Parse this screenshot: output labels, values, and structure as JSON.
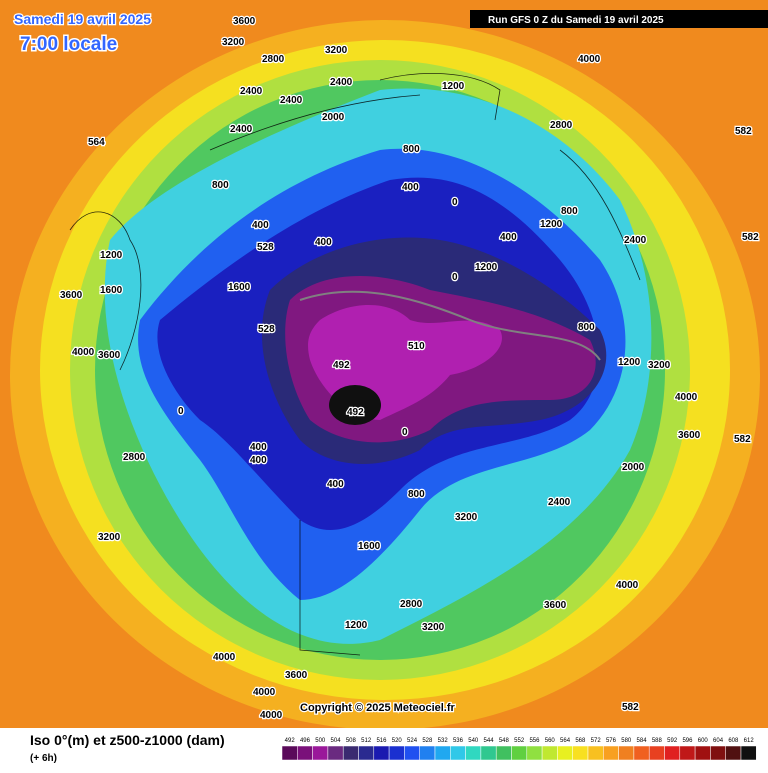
{
  "header": {
    "date": "Samedi 19 avril 2025",
    "time": "7:00 locale",
    "run": "Run GFS 0 Z du Samedi 19 avril 2025"
  },
  "map": {
    "copyright": "Copyright © 2025 Meteociel.fr",
    "contour_labels": [
      3600,
      3200,
      2800,
      3200,
      2400,
      2400,
      2400,
      2000,
      2400,
      800,
      400,
      400,
      528,
      1600,
      528,
      1200,
      1600,
      3600,
      4000,
      3600,
      0,
      400,
      400,
      492,
      492,
      510,
      0,
      400,
      800,
      1600,
      2800,
      1200,
      3200,
      4000,
      3600,
      4000,
      4000,
      2800,
      3200,
      1200,
      3200,
      4000,
      3600,
      2000,
      2400,
      3200,
      3600,
      4000,
      2400,
      1200,
      800,
      0,
      400,
      800,
      1200,
      2800,
      4000,
      564,
      582,
      582,
      582,
      582,
      800,
      400,
      0,
      1200
    ]
  },
  "legend": {
    "title": "Iso 0°(m) et z500-z1000 (dam)",
    "lead": "(+ 6h)",
    "scale": [
      492,
      496,
      500,
      504,
      508,
      512,
      516,
      520,
      524,
      528,
      532,
      536,
      540,
      544,
      548,
      552,
      556,
      560,
      564,
      568,
      572,
      576,
      580,
      584,
      588,
      592,
      596,
      600,
      604,
      608,
      612
    ],
    "colors": [
      "#5a0a5a",
      "#7a107a",
      "#9a189a",
      "#6a2a80",
      "#3a2a70",
      "#2a2a90",
      "#1a1ab0",
      "#1a30d0",
      "#2050f0",
      "#2080f0",
      "#20a8f0",
      "#30c8e8",
      "#30d8c0",
      "#30c890",
      "#40c060",
      "#60d040",
      "#90e040",
      "#c0e830",
      "#e8f020",
      "#f8e020",
      "#f8c020",
      "#f8a020",
      "#f08020",
      "#f06020",
      "#e84020",
      "#e02020",
      "#c01818",
      "#a01010",
      "#801010",
      "#501010",
      "#101010"
    ]
  }
}
